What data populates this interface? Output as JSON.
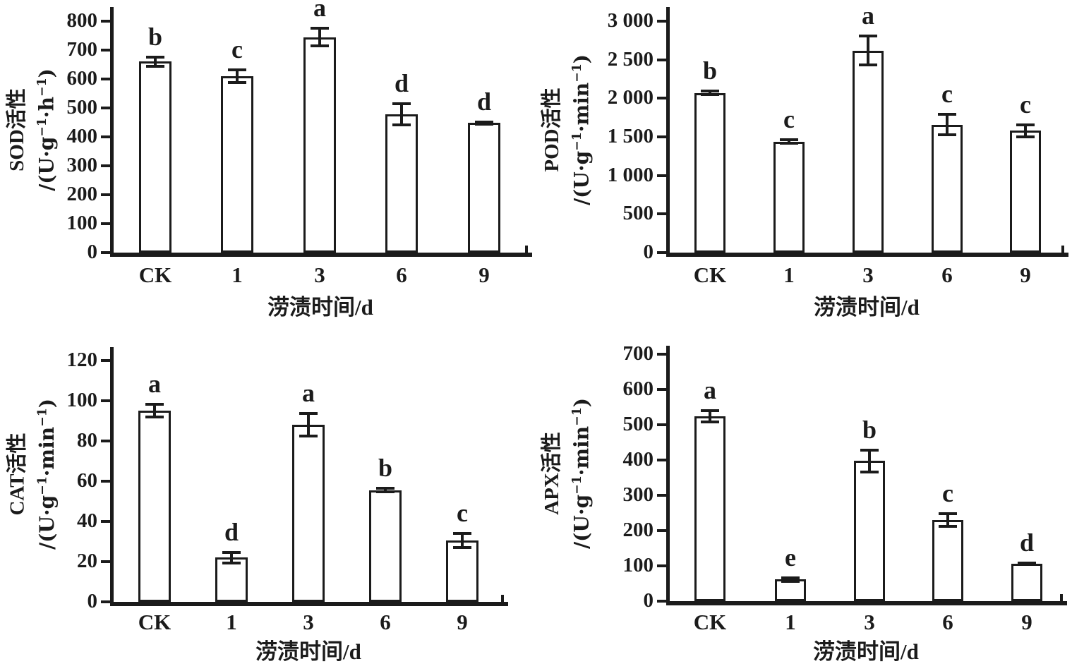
{
  "figure": {
    "background": "#ffffff",
    "ink_color": "#1b1b1b",
    "bar_fill": "#ffffff",
    "grid": "off",
    "legend": "none",
    "categories": [
      "CK",
      "1",
      "3",
      "6",
      "9"
    ],
    "xlabel": "涝渍时间/d"
  },
  "chart_data": [
    {
      "type": "bar",
      "panel": "top-left",
      "enzyme": "SOD",
      "ylabel_title": "SOD活性",
      "ylabel_unit": "/(U·g⁻¹·h⁻¹)",
      "xlabel": "涝渍时间/d",
      "categories": [
        "CK",
        "1",
        "3",
        "6",
        "9"
      ],
      "values": [
        660,
        610,
        745,
        478,
        448
      ],
      "errors": [
        18,
        25,
        32,
        38,
        6
      ],
      "sig_letters": [
        "b",
        "c",
        "a",
        "d",
        "d"
      ],
      "ylim": [
        0,
        800
      ],
      "ytick_step": 100,
      "ytick_labels": [
        "0",
        "100",
        "200",
        "300",
        "400",
        "500",
        "600",
        "700",
        "800"
      ]
    },
    {
      "type": "bar",
      "panel": "top-right",
      "enzyme": "POD",
      "ylabel_title": "POD活性",
      "ylabel_unit": "/(U·g⁻¹·min⁻¹)",
      "xlabel": "涝渍时间/d",
      "categories": [
        "CK",
        "1",
        "3",
        "6",
        "9"
      ],
      "values": [
        2070,
        1440,
        2620,
        1660,
        1580
      ],
      "errors": [
        30,
        35,
        195,
        140,
        85
      ],
      "sig_letters": [
        "b",
        "c",
        "a",
        "c",
        "c"
      ],
      "ylim": [
        0,
        3000
      ],
      "ytick_step": 500,
      "ytick_labels": [
        "0",
        "500",
        "1 000",
        "1 500",
        "2 000",
        "2 500",
        "3 000"
      ]
    },
    {
      "type": "bar",
      "panel": "bottom-left",
      "enzyme": "CAT",
      "ylabel_title": "CAT活性",
      "ylabel_unit": "/(U·g⁻¹·min⁻¹)",
      "xlabel": "涝渍时间/d",
      "categories": [
        "CK",
        "1",
        "3",
        "6",
        "9"
      ],
      "values": [
        95,
        22,
        88,
        55.5,
        30.5
      ],
      "errors": [
        3.5,
        3,
        6,
        1.2,
        4
      ],
      "sig_letters": [
        "a",
        "d",
        "a",
        "b",
        "c"
      ],
      "ylim": [
        0,
        120
      ],
      "ytick_step": 20,
      "ytick_labels": [
        "0",
        "20",
        "40",
        "60",
        "80",
        "100",
        "120"
      ]
    },
    {
      "type": "bar",
      "panel": "bottom-right",
      "enzyme": "APX",
      "ylabel_title": "APX活性",
      "ylabel_unit": "/(U·g⁻¹·min⁻¹)",
      "xlabel": "涝渍时间/d",
      "categories": [
        "CK",
        "1",
        "3",
        "6",
        "9"
      ],
      "values": [
        525,
        62,
        398,
        230,
        107
      ],
      "errors": [
        18,
        7,
        33,
        20,
        4
      ],
      "sig_letters": [
        "a",
        "e",
        "b",
        "c",
        "d"
      ],
      "ylim": [
        0,
        700
      ],
      "ytick_step": 100,
      "ytick_labels": [
        "0",
        "100",
        "200",
        "300",
        "400",
        "500",
        "600",
        "700"
      ]
    }
  ]
}
